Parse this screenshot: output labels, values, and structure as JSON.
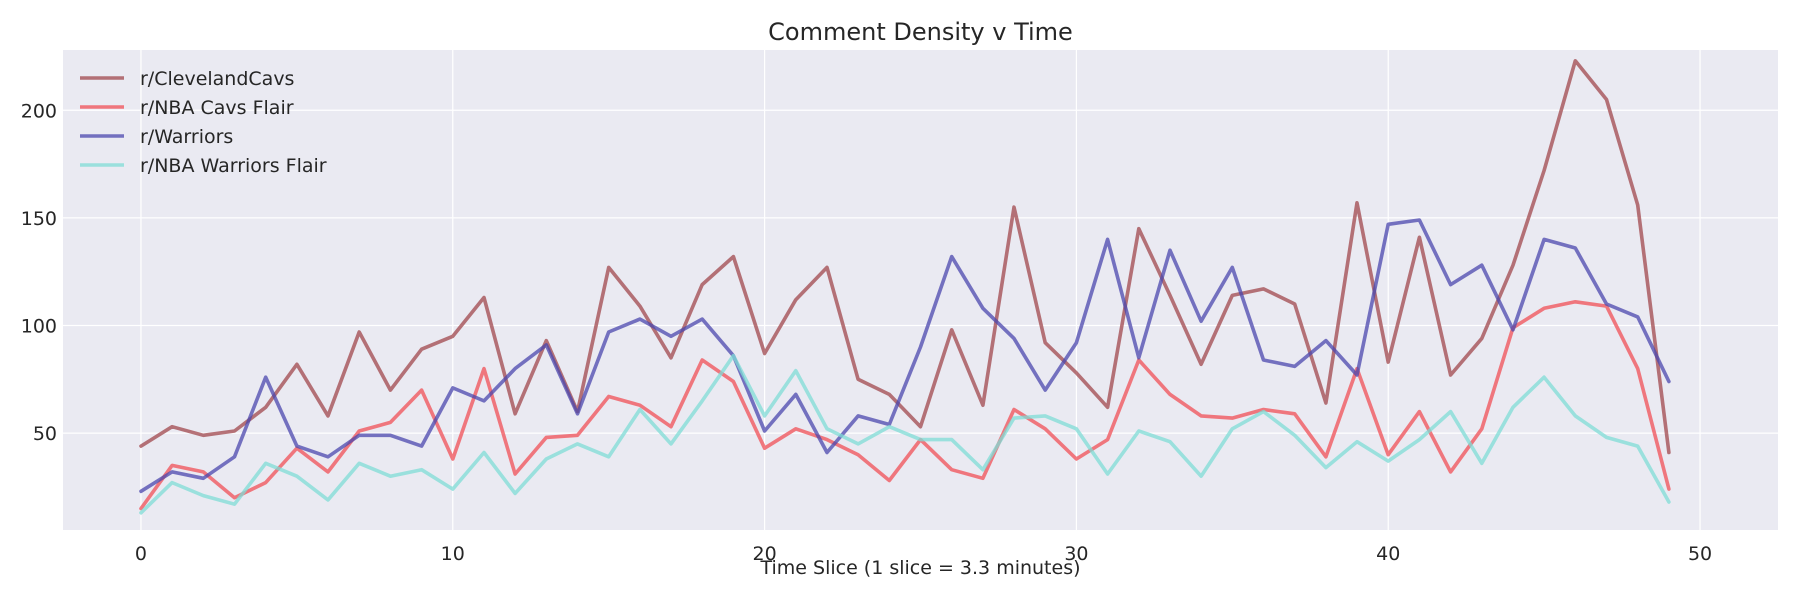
{
  "chart_data": {
    "type": "line",
    "title": "Comment Density v Time",
    "xlabel": "Time Slice (1 slice = 3.3 minutes)",
    "ylabel": "",
    "xlim": [
      -2.5,
      52.5
    ],
    "ylim": [
      5,
      228
    ],
    "xticks": [
      0,
      10,
      20,
      30,
      40,
      50
    ],
    "yticks": [
      50,
      100,
      150,
      200
    ],
    "grid": true,
    "legend_position": "top-left",
    "background": "#eaeaf2",
    "series": [
      {
        "name": "r/ClevelandCavs",
        "color": "#a0474c",
        "values": [
          44,
          53,
          49,
          51,
          62,
          82,
          58,
          97,
          70,
          89,
          95,
          113,
          59,
          93,
          60,
          127,
          109,
          85,
          119,
          132,
          87,
          112,
          127,
          75,
          68,
          53,
          98,
          63,
          155,
          92,
          78,
          62,
          145,
          114,
          82,
          114,
          117,
          110,
          64,
          157,
          83,
          141,
          77,
          94,
          128,
          172,
          223,
          205,
          156,
          41
        ]
      },
      {
        "name": "r/NBA Cavs Flair",
        "color": "#f04f55",
        "values": [
          15,
          35,
          32,
          20,
          27,
          43,
          32,
          51,
          55,
          70,
          38,
          80,
          31,
          48,
          49,
          67,
          63,
          53,
          84,
          74,
          43,
          52,
          47,
          40,
          28,
          47,
          33,
          29,
          61,
          52,
          38,
          47,
          84,
          68,
          58,
          57,
          61,
          59,
          39,
          80,
          40,
          60,
          32,
          52,
          99,
          108,
          111,
          109,
          80,
          24
        ]
      },
      {
        "name": "r/Warriors",
        "color": "#4b47ad",
        "values": [
          23,
          32,
          29,
          39,
          76,
          44,
          39,
          49,
          49,
          44,
          71,
          65,
          80,
          91,
          59,
          97,
          103,
          95,
          103,
          86,
          51,
          68,
          41,
          58,
          54,
          90,
          132,
          108,
          94,
          70,
          92,
          140,
          85,
          135,
          102,
          127,
          84,
          81,
          93,
          77,
          147,
          149,
          119,
          128,
          98,
          140,
          136,
          110,
          104,
          74
        ]
      },
      {
        "name": "r/NBA Warriors Flair",
        "color": "#7fdcd6",
        "values": [
          13,
          27,
          21,
          17,
          36,
          30,
          19,
          36,
          30,
          33,
          24,
          41,
          22,
          38,
          45,
          39,
          61,
          45,
          65,
          86,
          58,
          79,
          52,
          45,
          53,
          47,
          47,
          33,
          57,
          58,
          52,
          31,
          51,
          46,
          30,
          52,
          60,
          49,
          34,
          46,
          37,
          47,
          60,
          36,
          62,
          76,
          58,
          48,
          44,
          18
        ]
      }
    ]
  }
}
